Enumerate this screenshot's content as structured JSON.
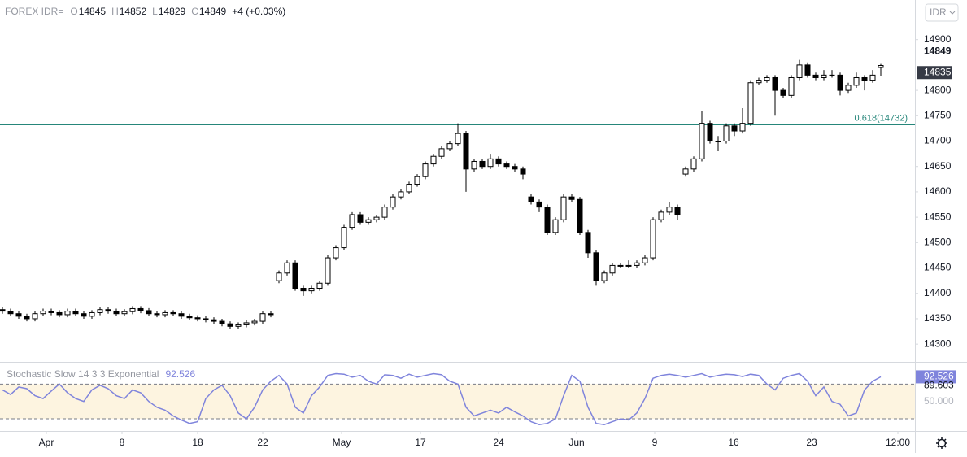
{
  "chart_data": {
    "type": "candlestick",
    "symbol": "FOREX IDR=",
    "ohlc_labels": [
      "O",
      "H",
      "L",
      "C"
    ],
    "change": "+4 (+0.03%)",
    "currency": "IDR",
    "open": [
      14368,
      14365,
      14360,
      14355,
      14350,
      14360,
      14365,
      14362,
      14358,
      14365,
      14360,
      14355,
      14362,
      14368,
      14365,
      14360,
      14364,
      14370,
      14366,
      14360,
      14358,
      14362,
      14360,
      14355,
      14352,
      14350,
      14348,
      14345,
      14340,
      14335,
      14338,
      14342,
      14345,
      14360,
      14425,
      14440,
      14460,
      14410,
      14405,
      14410,
      14420,
      14470,
      14490,
      14530,
      14555,
      14540,
      14545,
      14550,
      14570,
      14590,
      14600,
      14615,
      14630,
      14655,
      14670,
      14685,
      14695,
      14715,
      14645,
      14660,
      14650,
      14665,
      14655,
      14650,
      14645,
      14590,
      14580,
      14570,
      14520,
      14545,
      14590,
      14585,
      14520,
      14480,
      14425,
      14440,
      14455,
      14455,
      14455,
      14460,
      14470,
      14545,
      14560,
      14570,
      14635,
      14645,
      14665,
      14735,
      14700,
      14700,
      14730,
      14720,
      14735,
      14815,
      14820,
      14825,
      14800,
      14790,
      14825,
      14850,
      14830,
      14825,
      14830,
      14830,
      14800,
      14810,
      14825,
      14820,
      14845
    ],
    "high": [
      14373,
      14370,
      14365,
      14360,
      14365,
      14370,
      14370,
      14367,
      14370,
      14370,
      14365,
      14367,
      14373,
      14373,
      14370,
      14369,
      14375,
      14375,
      14371,
      14365,
      14367,
      14367,
      14365,
      14360,
      14357,
      14355,
      14353,
      14350,
      14345,
      14343,
      14347,
      14350,
      14365,
      14365,
      14445,
      14465,
      14465,
      14415,
      14415,
      14425,
      14475,
      14495,
      14535,
      14560,
      14560,
      14550,
      14555,
      14575,
      14595,
      14605,
      14620,
      14635,
      14660,
      14675,
      14690,
      14700,
      14735,
      14720,
      14665,
      14665,
      14675,
      14670,
      14660,
      14655,
      14650,
      14595,
      14585,
      14575,
      14550,
      14595,
      14595,
      14590,
      14525,
      14485,
      14445,
      14460,
      14460,
      14465,
      14465,
      14475,
      14550,
      14565,
      14580,
      14575,
      14650,
      14670,
      14760,
      14740,
      14710,
      14735,
      14735,
      14765,
      14820,
      14825,
      14830,
      14830,
      14805,
      14830,
      14860,
      14855,
      14835,
      14840,
      14840,
      14835,
      14815,
      14835,
      14830,
      14840,
      14852
    ],
    "low": [
      14360,
      14355,
      14350,
      14345,
      14345,
      14355,
      14357,
      14353,
      14353,
      14355,
      14350,
      14350,
      14357,
      14360,
      14355,
      14355,
      14359,
      14361,
      14355,
      14353,
      14353,
      14355,
      14350,
      14347,
      14345,
      14343,
      14340,
      14335,
      14330,
      14330,
      14333,
      14337,
      14340,
      14353,
      14420,
      14435,
      14405,
      14395,
      14400,
      14405,
      14415,
      14465,
      14485,
      14525,
      14535,
      14535,
      14540,
      14545,
      14565,
      14585,
      14595,
      14610,
      14625,
      14650,
      14665,
      14680,
      14690,
      14600,
      14640,
      14645,
      14645,
      14650,
      14645,
      14640,
      14625,
      14575,
      14560,
      14515,
      14515,
      14540,
      14580,
      14515,
      14470,
      14415,
      14420,
      14435,
      14450,
      14450,
      14450,
      14455,
      14465,
      14540,
      14555,
      14545,
      14630,
      14640,
      14660,
      14695,
      14680,
      14695,
      14710,
      14715,
      14730,
      14810,
      14815,
      14750,
      14785,
      14785,
      14820,
      14825,
      14820,
      14820,
      14825,
      14790,
      14795,
      14805,
      14800,
      14815,
      14829
    ],
    "close": [
      14365,
      14360,
      14355,
      14350,
      14360,
      14365,
      14362,
      14358,
      14365,
      14360,
      14355,
      14362,
      14368,
      14365,
      14360,
      14364,
      14370,
      14366,
      14360,
      14358,
      14362,
      14360,
      14355,
      14352,
      14350,
      14348,
      14345,
      14340,
      14335,
      14338,
      14342,
      14345,
      14360,
      14358,
      14440,
      14460,
      14410,
      14405,
      14410,
      14420,
      14470,
      14490,
      14530,
      14555,
      14540,
      14545,
      14550,
      14570,
      14590,
      14600,
      14615,
      14630,
      14655,
      14670,
      14685,
      14695,
      14715,
      14645,
      14660,
      14650,
      14665,
      14655,
      14650,
      14645,
      14635,
      14580,
      14570,
      14520,
      14545,
      14590,
      14585,
      14520,
      14480,
      14425,
      14440,
      14455,
      14455,
      14455,
      14460,
      14470,
      14545,
      14560,
      14570,
      14555,
      14645,
      14665,
      14735,
      14700,
      14700,
      14730,
      14720,
      14735,
      14815,
      14820,
      14825,
      14800,
      14790,
      14825,
      14850,
      14830,
      14825,
      14830,
      14830,
      14800,
      14810,
      14825,
      14820,
      14830,
      14849
    ],
    "xlim": [
      -0.3,
      112.2
    ],
    "ylim": [
      14265,
      14978
    ],
    "yticks": [
      14300,
      14350,
      14400,
      14450,
      14500,
      14550,
      14600,
      14650,
      14700,
      14750,
      14800,
      14900
    ],
    "xticks": [
      {
        "value": 5.4,
        "label": "Apr"
      },
      {
        "value": 14.7,
        "label": "8"
      },
      {
        "value": 24,
        "label": "18"
      },
      {
        "value": 32,
        "label": "22"
      },
      {
        "value": 41.7,
        "label": "May"
      },
      {
        "value": 51.4,
        "label": "17"
      },
      {
        "value": 61,
        "label": "24"
      },
      {
        "value": 70.6,
        "label": "Jun"
      },
      {
        "value": 80.2,
        "label": "9"
      },
      {
        "value": 89.9,
        "label": "16"
      },
      {
        "value": 99.5,
        "label": "23"
      },
      {
        "value": 110.1,
        "label": "12:00"
      }
    ],
    "fib": {
      "value": 14732,
      "label": "0.618(14732)",
      "color": "#26867a"
    },
    "marker_price": 14835,
    "stochastic": {
      "title": "Stochastic Slow 14 3 3 Exponential",
      "color": "#7f84dc",
      "values": [
        70,
        62,
        75,
        72,
        60,
        55,
        68,
        80,
        65,
        55,
        50,
        70,
        78,
        72,
        60,
        55,
        70,
        65,
        50,
        40,
        35,
        25,
        18,
        12,
        15,
        55,
        70,
        78,
        60,
        30,
        20,
        40,
        70,
        85,
        95,
        80,
        40,
        30,
        60,
        75,
        95,
        98,
        97,
        92,
        95,
        85,
        80,
        96,
        95,
        90,
        97,
        92,
        95,
        98,
        96,
        85,
        80,
        40,
        25,
        30,
        35,
        30,
        40,
        32,
        25,
        15,
        10,
        12,
        20,
        60,
        95,
        85,
        40,
        12,
        10,
        15,
        20,
        18,
        30,
        55,
        90,
        95,
        97,
        95,
        92,
        95,
        98,
        92,
        95,
        97,
        96,
        93,
        97,
        95,
        80,
        70,
        90,
        95,
        98,
        85,
        60,
        75,
        50,
        45,
        25,
        30,
        70,
        85,
        92.526
      ],
      "d_value": 89.603,
      "levels": [
        20,
        80
      ],
      "ylim": [
        -1,
        117
      ],
      "yticks": [
        {
          "value": 50,
          "label": "50.000"
        }
      ]
    }
  }
}
